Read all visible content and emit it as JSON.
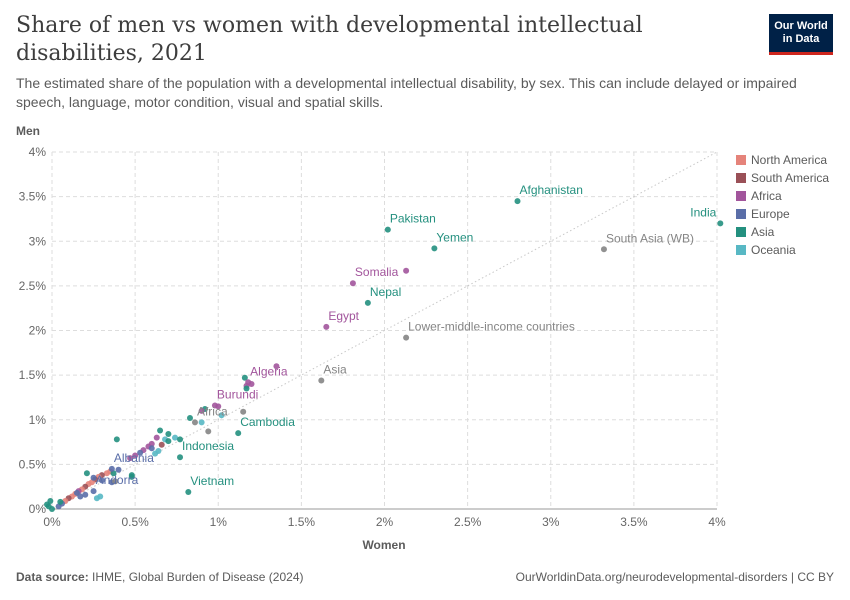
{
  "header": {
    "title": "Share of men vs women with developmental intellectual disabilities, 2021",
    "subtitle": "The estimated share of the population with a developmental intellectual disability, by sex. This can include delayed or impaired speech, language, motor condition, visual and spatial skills.",
    "logo_line1": "Our World",
    "logo_line2": "in Data"
  },
  "footer": {
    "source_label": "Data source:",
    "source_text": "IHME, Global Burden of Disease (2024)",
    "url": "OurWorldinData.org/neurodevelopmental-disorders | CC BY"
  },
  "legend": [
    {
      "name": "North America",
      "color": "#e5837a"
    },
    {
      "name": "South America",
      "color": "#9a5057"
    },
    {
      "name": "Africa",
      "color": "#a2559c"
    },
    {
      "name": "Europe",
      "color": "#5a6ea8"
    },
    {
      "name": "Asia",
      "color": "#24907f"
    },
    {
      "name": "Oceania",
      "color": "#58b8c4"
    }
  ],
  "chart_data": {
    "type": "scatter",
    "xlabel": "Women",
    "ylabel": "Men",
    "xlim": [
      0,
      4
    ],
    "ylim": [
      0,
      4
    ],
    "x_ticks": [
      "0%",
      "0.5%",
      "1%",
      "1.5%",
      "2%",
      "2.5%",
      "3%",
      "3.5%",
      "4%"
    ],
    "y_ticks": [
      "0%",
      "0.5%",
      "1%",
      "1.5%",
      "2%",
      "2.5%",
      "3%",
      "3.5%",
      "4%"
    ],
    "grid": true,
    "legend_position": "right",
    "reference_line": "x = y",
    "aggregate_color": "#858585",
    "labeled_points": [
      {
        "label": "Afghanistan",
        "x": 2.8,
        "y": 3.45,
        "group": "Asia"
      },
      {
        "label": "India",
        "x": 4.02,
        "y": 3.2,
        "group": "Asia"
      },
      {
        "label": "Pakistan",
        "x": 2.02,
        "y": 3.13,
        "group": "Asia"
      },
      {
        "label": "Yemen",
        "x": 2.3,
        "y": 2.92,
        "group": "Asia"
      },
      {
        "label": "South Asia (WB)",
        "x": 3.32,
        "y": 2.91,
        "group": "Aggregate"
      },
      {
        "label": "Somalia",
        "x": 1.81,
        "y": 2.53,
        "group": "Africa"
      },
      {
        "label": "Nepal",
        "x": 1.9,
        "y": 2.31,
        "group": "Asia"
      },
      {
        "label": "Egypt",
        "x": 1.65,
        "y": 2.04,
        "group": "Africa"
      },
      {
        "label": "Lower-middle-income countries",
        "x": 2.13,
        "y": 1.92,
        "group": "Aggregate"
      },
      {
        "label": "Asia",
        "x": 1.62,
        "y": 1.44,
        "group": "Aggregate"
      },
      {
        "label": "Algeria",
        "x": 1.18,
        "y": 1.42,
        "group": "Africa"
      },
      {
        "label": "Burundi",
        "x": 0.98,
        "y": 1.16,
        "group": "Africa"
      },
      {
        "label": "Africa",
        "x": 0.86,
        "y": 0.97,
        "group": "Aggregate"
      },
      {
        "label": "Cambodia",
        "x": 1.12,
        "y": 0.85,
        "group": "Asia"
      },
      {
        "label": "Indonesia",
        "x": 0.77,
        "y": 0.58,
        "group": "Asia"
      },
      {
        "label": "Albania",
        "x": 0.36,
        "y": 0.45,
        "group": "Europe"
      },
      {
        "label": "Andorra",
        "x": 0.25,
        "y": 0.2,
        "group": "Europe"
      },
      {
        "label": "Vietnam",
        "x": 0.82,
        "y": 0.19,
        "group": "Asia"
      }
    ],
    "points": [
      {
        "x": 2.13,
        "y": 2.67,
        "group": "Africa"
      },
      {
        "x": 1.35,
        "y": 1.6,
        "group": "Africa"
      },
      {
        "x": 1.17,
        "y": 1.38,
        "group": "Africa"
      },
      {
        "x": 1.2,
        "y": 1.4,
        "group": "Africa"
      },
      {
        "x": 1.15,
        "y": 1.09,
        "group": "Aggregate"
      },
      {
        "x": 1.16,
        "y": 1.47,
        "group": "Asia"
      },
      {
        "x": 1.17,
        "y": 1.35,
        "group": "Asia"
      },
      {
        "x": 1.0,
        "y": 1.15,
        "group": "Africa"
      },
      {
        "x": 1.02,
        "y": 1.05,
        "group": "Oceania"
      },
      {
        "x": 0.92,
        "y": 1.12,
        "group": "Asia"
      },
      {
        "x": 0.9,
        "y": 1.1,
        "group": "Africa"
      },
      {
        "x": 0.83,
        "y": 1.02,
        "group": "Asia"
      },
      {
        "x": 0.94,
        "y": 0.87,
        "group": "Aggregate"
      },
      {
        "x": 0.9,
        "y": 0.97,
        "group": "Oceania"
      },
      {
        "x": 0.65,
        "y": 0.88,
        "group": "Asia"
      },
      {
        "x": 0.7,
        "y": 0.84,
        "group": "Asia"
      },
      {
        "x": 0.74,
        "y": 0.8,
        "group": "Oceania"
      },
      {
        "x": 0.77,
        "y": 0.78,
        "group": "Asia"
      },
      {
        "x": 0.68,
        "y": 0.78,
        "group": "Oceania"
      },
      {
        "x": 0.63,
        "y": 0.8,
        "group": "Africa"
      },
      {
        "x": 0.6,
        "y": 0.73,
        "group": "Africa"
      },
      {
        "x": 0.58,
        "y": 0.7,
        "group": "Africa"
      },
      {
        "x": 0.55,
        "y": 0.66,
        "group": "Africa"
      },
      {
        "x": 0.53,
        "y": 0.63,
        "group": "Europe"
      },
      {
        "x": 0.5,
        "y": 0.6,
        "group": "Africa"
      },
      {
        "x": 0.47,
        "y": 0.57,
        "group": "Africa"
      },
      {
        "x": 0.64,
        "y": 0.65,
        "group": "Oceania"
      },
      {
        "x": 0.62,
        "y": 0.62,
        "group": "Oceania"
      },
      {
        "x": 0.39,
        "y": 0.78,
        "group": "Asia"
      },
      {
        "x": 0.48,
        "y": 0.38,
        "group": "Asia"
      },
      {
        "x": 0.48,
        "y": 0.36,
        "group": "Asia"
      },
      {
        "x": 0.4,
        "y": 0.44,
        "group": "Europe"
      },
      {
        "x": 0.35,
        "y": 0.42,
        "group": "North America"
      },
      {
        "x": 0.33,
        "y": 0.4,
        "group": "North America"
      },
      {
        "x": 0.3,
        "y": 0.38,
        "group": "South America"
      },
      {
        "x": 0.28,
        "y": 0.36,
        "group": "North America"
      },
      {
        "x": 0.26,
        "y": 0.33,
        "group": "South America"
      },
      {
        "x": 0.24,
        "y": 0.3,
        "group": "North America"
      },
      {
        "x": 0.22,
        "y": 0.28,
        "group": "North America"
      },
      {
        "x": 0.2,
        "y": 0.25,
        "group": "South America"
      },
      {
        "x": 0.18,
        "y": 0.22,
        "group": "North America"
      },
      {
        "x": 0.16,
        "y": 0.2,
        "group": "Africa"
      },
      {
        "x": 0.14,
        "y": 0.17,
        "group": "North America"
      },
      {
        "x": 0.12,
        "y": 0.14,
        "group": "North America"
      },
      {
        "x": 0.1,
        "y": 0.12,
        "group": "South America"
      },
      {
        "x": 0.08,
        "y": 0.09,
        "group": "North America"
      },
      {
        "x": 0.06,
        "y": 0.06,
        "group": "Europe"
      },
      {
        "x": 0.04,
        "y": 0.03,
        "group": "Europe"
      },
      {
        "x": 0.21,
        "y": 0.4,
        "group": "Asia"
      },
      {
        "x": 0.25,
        "y": 0.35,
        "group": "Europe"
      },
      {
        "x": 0.3,
        "y": 0.32,
        "group": "Europe"
      },
      {
        "x": 0.36,
        "y": 0.3,
        "group": "Europe"
      },
      {
        "x": 0.38,
        "y": 0.31,
        "group": "Aggregate"
      },
      {
        "x": 0.2,
        "y": 0.16,
        "group": "Europe"
      },
      {
        "x": 0.17,
        "y": 0.14,
        "group": "Europe"
      },
      {
        "x": 0.15,
        "y": 0.18,
        "group": "Europe"
      },
      {
        "x": 0.29,
        "y": 0.14,
        "group": "Oceania"
      },
      {
        "x": 0.27,
        "y": 0.12,
        "group": "Oceania"
      },
      {
        "x": 0.05,
        "y": 0.08,
        "group": "Asia"
      },
      {
        "x": -0.03,
        "y": 0.05,
        "group": "Asia"
      },
      {
        "x": -0.02,
        "y": 0.03,
        "group": "Asia"
      },
      {
        "x": -0.01,
        "y": 0.09,
        "group": "Asia"
      },
      {
        "x": 0.0,
        "y": 0.0,
        "group": "Asia"
      },
      {
        "x": 0.37,
        "y": 0.4,
        "group": "Asia"
      },
      {
        "x": 0.7,
        "y": 0.76,
        "group": "Asia"
      },
      {
        "x": 0.66,
        "y": 0.72,
        "group": "South America"
      },
      {
        "x": 0.6,
        "y": 0.68,
        "group": "Europe"
      }
    ]
  }
}
